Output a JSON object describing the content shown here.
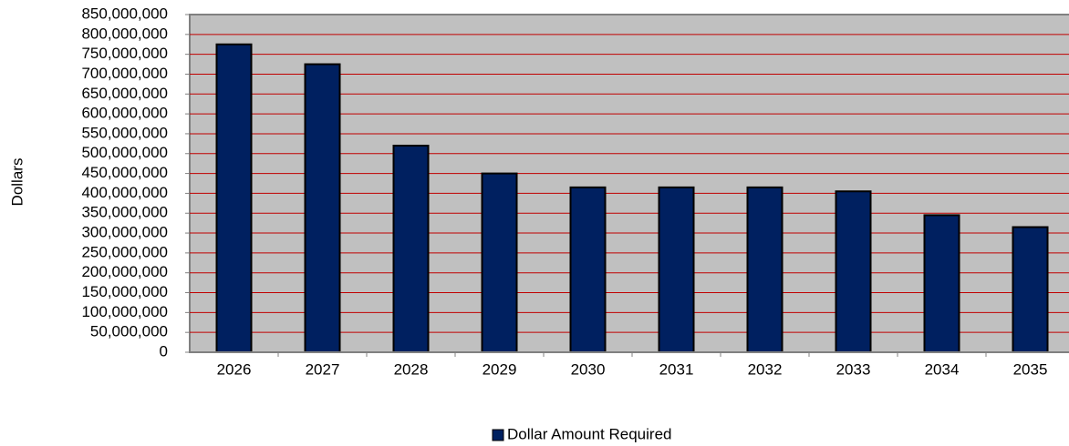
{
  "chart_data": {
    "type": "bar",
    "y_label": "Dollars",
    "categories": [
      "2026",
      "2027",
      "2028",
      "2029",
      "2030",
      "2031",
      "2032",
      "2033",
      "2034",
      "2035"
    ],
    "series": [
      {
        "name": "Dollar Amount Required",
        "color": "#002060",
        "values": [
          775000000,
          725000000,
          520000000,
          450000000,
          415000000,
          415000000,
          415000000,
          405000000,
          345000000,
          315000000
        ]
      }
    ],
    "ylim": [
      0,
      850000000
    ],
    "yticks": [
      0,
      {
        "value": 50000000,
        "label": "50,000,000"
      },
      {
        "value": 100000000,
        "label": "100,000,000"
      },
      {
        "value": 150000000,
        "label": "150,000,000"
      },
      {
        "value": 200000000,
        "label": "200,000,000"
      },
      {
        "value": 250000000,
        "label": "250,000,000"
      },
      {
        "value": 300000000,
        "label": "300,000,000"
      },
      {
        "value": 350000000,
        "label": "350,000,000"
      },
      {
        "value": 400000000,
        "label": "400,000,000"
      },
      {
        "value": 450000000,
        "label": "450,000,000"
      },
      {
        "value": 500000000,
        "label": "500,000,000"
      },
      {
        "value": 550000000,
        "label": "550,000,000"
      },
      {
        "value": 600000000,
        "label": "600,000,000"
      },
      {
        "value": 650000000,
        "label": "650,000,000"
      },
      {
        "value": 700000000,
        "label": "700,000,000"
      },
      {
        "value": 750000000,
        "label": "750,000,000"
      },
      {
        "value": 800000000,
        "label": "800,000,000"
      },
      {
        "value": 850000000,
        "label": "850,000,000"
      }
    ],
    "grid": true,
    "grid_color": "#c00000",
    "plot_background": "#c0c0c0",
    "legend": "bottom"
  }
}
